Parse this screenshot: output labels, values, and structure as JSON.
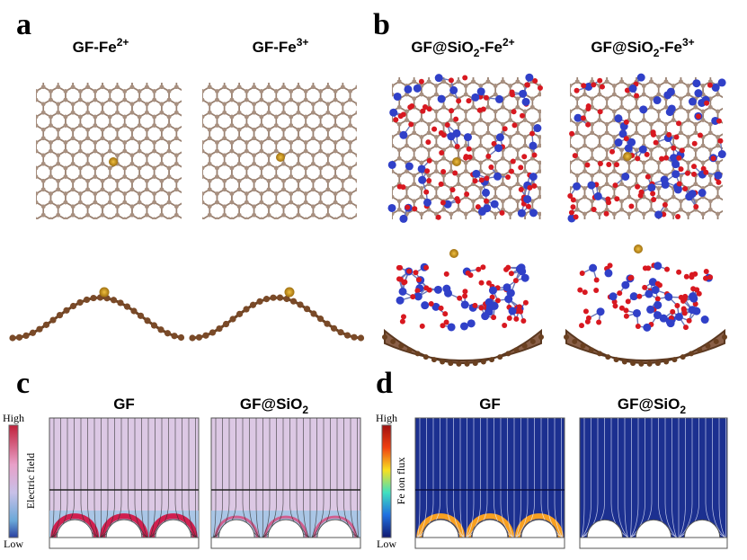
{
  "panels": {
    "a": {
      "label": "a",
      "titles": [
        [
          "GF-Fe",
          "2+"
        ],
        [
          "GF-Fe",
          "3+"
        ]
      ]
    },
    "b": {
      "label": "b",
      "titles": [
        [
          "GF@SiO",
          "2",
          "-Fe",
          "2+"
        ],
        [
          "GF@SiO",
          "2",
          "-Fe",
          "3+"
        ]
      ]
    },
    "c": {
      "label": "c",
      "titles": [
        [
          "GF"
        ],
        [
          "GF@SiO",
          "2"
        ]
      ],
      "colorbar": {
        "high": "High",
        "low": "Low",
        "label": "Electric field"
      }
    },
    "d": {
      "label": "d",
      "titles": [
        [
          "GF"
        ],
        [
          "GF@SiO",
          "2"
        ]
      ],
      "colorbar": {
        "high": "High",
        "low": "Low",
        "label": "Fe ion flux"
      }
    }
  }
}
